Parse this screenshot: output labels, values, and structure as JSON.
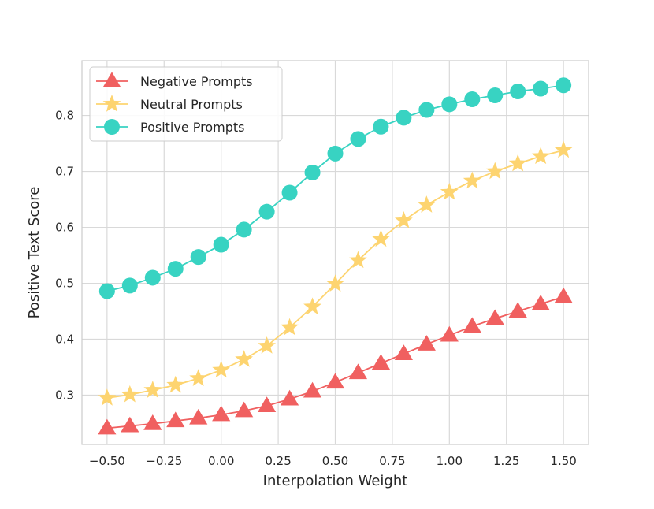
{
  "chart_data": {
    "type": "line",
    "title": "",
    "xlabel": "Interpolation Weight",
    "ylabel": "Positive Text Score",
    "xlim": [
      -0.61,
      1.61
    ],
    "ylim": [
      0.212,
      0.898
    ],
    "grid": true,
    "legend_position": "upper-left",
    "xticks": [
      -0.5,
      -0.25,
      0.0,
      0.25,
      0.5,
      0.75,
      1.0,
      1.25,
      1.5
    ],
    "xtick_labels": [
      "−0.50",
      "−0.25",
      "0.00",
      "0.25",
      "0.50",
      "0.75",
      "1.00",
      "1.25",
      "1.50"
    ],
    "yticks": [
      0.3,
      0.4,
      0.5,
      0.6,
      0.7,
      0.8
    ],
    "ytick_labels": [
      "0.3",
      "0.4",
      "0.5",
      "0.6",
      "0.7",
      "0.8"
    ],
    "x": [
      -0.5,
      -0.4,
      -0.3,
      -0.2,
      -0.1,
      0.0,
      0.1,
      0.2,
      0.3,
      0.4,
      0.5,
      0.6,
      0.7,
      0.8,
      0.9,
      1.0,
      1.1,
      1.2,
      1.3,
      1.4,
      1.5
    ],
    "series": [
      {
        "name": "Negative Prompts",
        "color": "#f06060",
        "marker": "triangle",
        "values": [
          0.241,
          0.245,
          0.249,
          0.254,
          0.259,
          0.265,
          0.272,
          0.281,
          0.293,
          0.307,
          0.323,
          0.34,
          0.357,
          0.374,
          0.391,
          0.407,
          0.423,
          0.437,
          0.45,
          0.463,
          0.476
        ]
      },
      {
        "name": "Neutral Prompts",
        "color": "#fdd470",
        "marker": "star",
        "values": [
          0.295,
          0.301,
          0.309,
          0.318,
          0.33,
          0.345,
          0.364,
          0.388,
          0.421,
          0.458,
          0.499,
          0.541,
          0.579,
          0.612,
          0.64,
          0.663,
          0.683,
          0.7,
          0.714,
          0.727,
          0.738
        ]
      },
      {
        "name": "Positive Prompts",
        "color": "#38d3c2",
        "marker": "circle",
        "values": [
          0.486,
          0.496,
          0.51,
          0.526,
          0.547,
          0.569,
          0.596,
          0.628,
          0.662,
          0.698,
          0.732,
          0.758,
          0.78,
          0.796,
          0.81,
          0.82,
          0.829,
          0.836,
          0.843,
          0.848,
          0.854
        ]
      }
    ]
  }
}
